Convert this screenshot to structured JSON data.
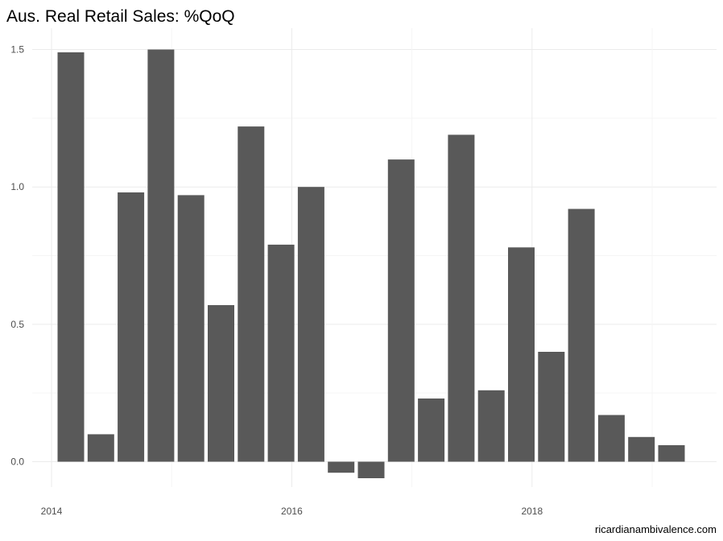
{
  "chart_data": {
    "type": "bar",
    "title": "Aus. Real Retail Sales: %QoQ",
    "caption": "ricardianambivalence.com",
    "xlabel": "",
    "ylabel": "",
    "categories": [
      "2014 Q1",
      "2014 Q2",
      "2014 Q3",
      "2014 Q4",
      "2015 Q1",
      "2015 Q2",
      "2015 Q3",
      "2015 Q4",
      "2016 Q1",
      "2016 Q2",
      "2016 Q3",
      "2016 Q4",
      "2017 Q1",
      "2017 Q2",
      "2017 Q3",
      "2017 Q4",
      "2018 Q1",
      "2018 Q2",
      "2018 Q3",
      "2018 Q4",
      "2019 Q1"
    ],
    "values": [
      1.49,
      0.1,
      0.98,
      1.5,
      0.97,
      0.57,
      1.22,
      0.79,
      1.0,
      -0.04,
      -0.06,
      1.1,
      0.23,
      1.19,
      0.26,
      0.78,
      0.4,
      0.92,
      0.17,
      0.09,
      0.06
    ],
    "x_ticks": [
      "2014",
      "2016",
      "2018"
    ],
    "x_tick_positions": [
      0,
      8,
      16
    ],
    "y_ticks": [
      "0.0",
      "0.5",
      "1.0",
      "1.5"
    ],
    "y_tick_values": [
      0,
      0.5,
      1.0,
      1.5
    ],
    "ylim": [
      -0.06,
      1.52
    ],
    "grid": true,
    "legend": "none",
    "bar_color": "#595959",
    "grid_major_color": "#ebebeb",
    "grid_minor_color": "#f5f5f5"
  }
}
